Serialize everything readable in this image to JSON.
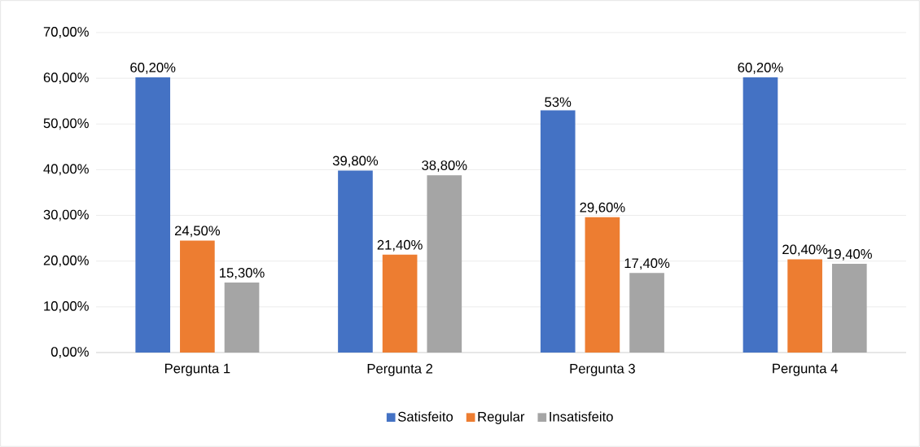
{
  "chart_data": {
    "type": "bar",
    "categories": [
      "Pergunta 1",
      "Pergunta 2",
      "Pergunta 3",
      "Pergunta 4"
    ],
    "series": [
      {
        "name": "Satisfeito",
        "color": "#4472c4",
        "values": [
          60.2,
          39.8,
          53,
          60.2
        ],
        "value_labels": [
          "60,20%",
          "39,80%",
          "53%",
          "60,20%"
        ]
      },
      {
        "name": "Regular",
        "color": "#ed7d31",
        "values": [
          24.5,
          21.4,
          29.6,
          20.4
        ],
        "value_labels": [
          "24,50%",
          "21,40%",
          "29,60%",
          "20,40%"
        ]
      },
      {
        "name": "Insatisfeito",
        "color": "#a5a5a5",
        "values": [
          15.3,
          38.8,
          17.4,
          19.4
        ],
        "value_labels": [
          "15,30%",
          "38,80%",
          "17,40%",
          "19,40%"
        ]
      }
    ],
    "ylim": [
      0,
      70
    ],
    "yticks": [
      {
        "value": 0,
        "label": "0,00%"
      },
      {
        "value": 10,
        "label": "10,00%"
      },
      {
        "value": 20,
        "label": "20,00%"
      },
      {
        "value": 30,
        "label": "30,00%"
      },
      {
        "value": 40,
        "label": "40,00%"
      },
      {
        "value": 50,
        "label": "50,00%"
      },
      {
        "value": 60,
        "label": "60,00%"
      },
      {
        "value": 70,
        "label": "70,00%"
      }
    ],
    "grid": "y",
    "legend": "bottom"
  }
}
